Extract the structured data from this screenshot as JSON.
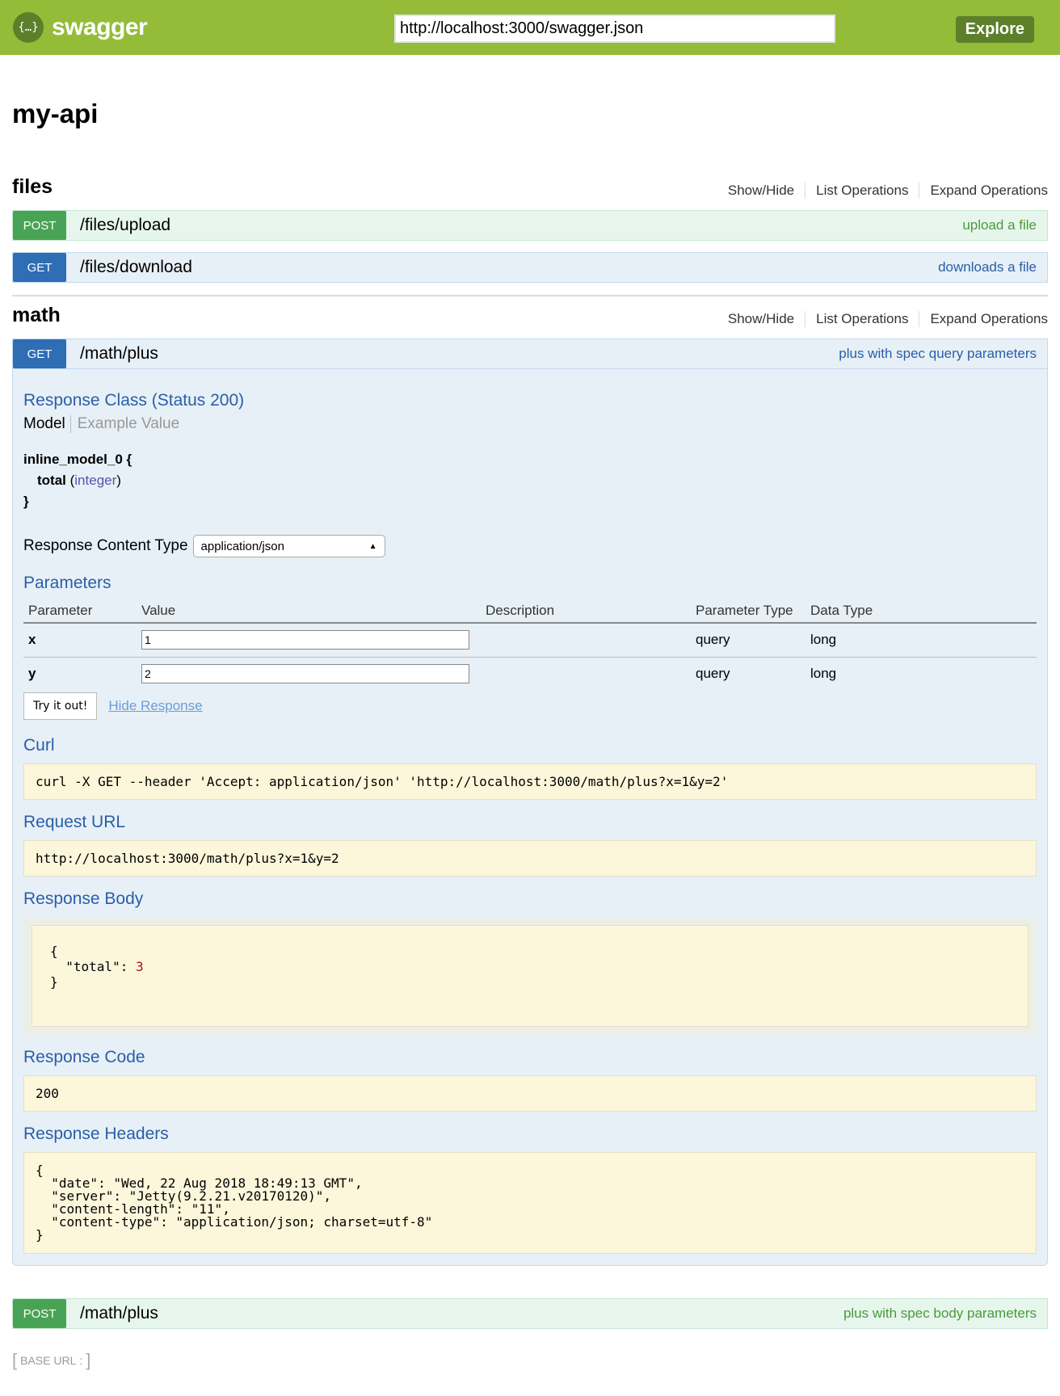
{
  "header": {
    "logo_text": "swagger",
    "logo_icon": "{…}",
    "url": "http://localhost:3000/swagger.json",
    "explore_label": "Explore"
  },
  "api_title": "my-api",
  "resource_links": {
    "show_hide": "Show/Hide",
    "list": "List Operations",
    "expand": "Expand Operations"
  },
  "resources": [
    {
      "name": "files",
      "operations": [
        {
          "method": "POST",
          "path": "/files/upload",
          "summary": "upload a file"
        },
        {
          "method": "GET",
          "path": "/files/download",
          "summary": "downloads a file"
        }
      ]
    },
    {
      "name": "math",
      "operations": [
        {
          "method": "GET",
          "path": "/math/plus",
          "summary": "plus with spec query parameters"
        },
        {
          "method": "POST",
          "path": "/math/plus",
          "summary": "plus with spec body parameters"
        }
      ]
    }
  ],
  "expanded": {
    "response_class": "Response Class (Status 200)",
    "tab_model": "Model",
    "tab_example": "Example Value",
    "model_name": "inline_model_0 {",
    "model_field": "total",
    "model_type_open": " (",
    "model_type": "integer",
    "model_type_close": ")",
    "model_close": "}",
    "content_type_label": "Response Content Type",
    "content_type": "application/json",
    "parameters_title": "Parameters",
    "columns": [
      "Parameter",
      "Value",
      "Description",
      "Parameter Type",
      "Data Type"
    ],
    "params": [
      {
        "name": "x",
        "value": "1",
        "description": "",
        "param_type": "query",
        "data_type": "long"
      },
      {
        "name": "y",
        "value": "2",
        "description": "",
        "param_type": "query",
        "data_type": "long"
      }
    ],
    "try_label": "Try it out!",
    "hide_label": "Hide Response",
    "curl_title": "Curl",
    "curl": "curl -X GET --header 'Accept: application/json' 'http://localhost:3000/math/plus?x=1&y=2'",
    "request_url_title": "Request URL",
    "request_url": "http://localhost:3000/math/plus?x=1&y=2",
    "response_body_title": "Response Body",
    "body_open": "{",
    "body_key": "  \"total\": ",
    "body_value": "3",
    "body_close": "}",
    "response_code_title": "Response Code",
    "response_code": "200",
    "response_headers_title": "Response Headers",
    "response_headers": "{\n  \"date\": \"Wed, 22 Aug 2018 18:49:13 GMT\",\n  \"server\": \"Jetty(9.2.21.v20170120)\",\n  \"content-length\": \"11\",\n  \"content-type\": \"application/json; charset=utf-8\"\n}"
  },
  "base_url_label": "BASE URL",
  "base_url_suffix": ":"
}
